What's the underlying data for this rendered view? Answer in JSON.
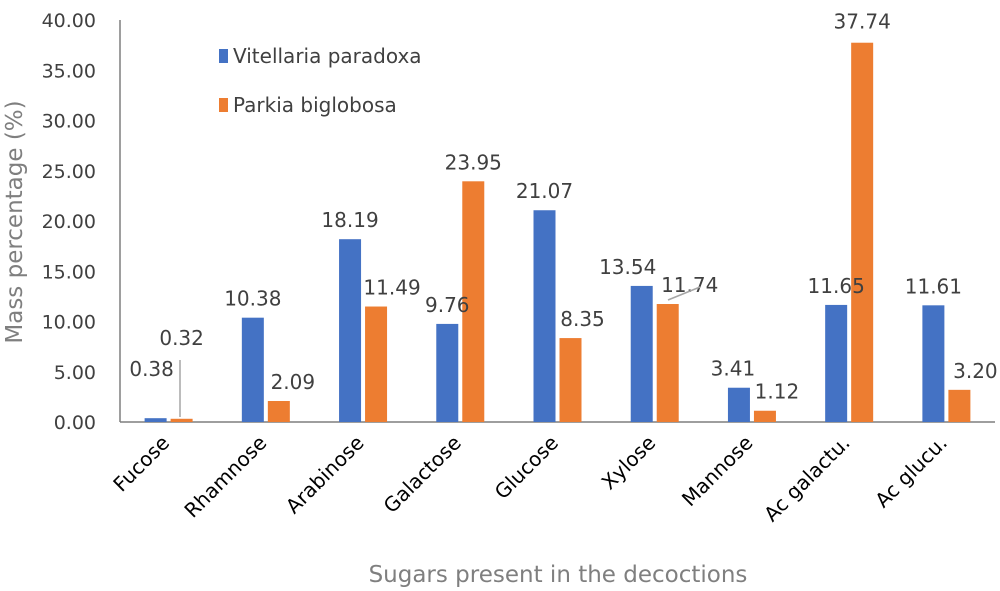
{
  "chart_data": {
    "type": "bar",
    "title": "",
    "xlabel": "Sugars present in the decoctions",
    "ylabel": "Mass percentage (%)",
    "ylim": [
      0,
      40
    ],
    "yticks": [
      "0.00",
      "5.00",
      "10.00",
      "15.00",
      "20.00",
      "25.00",
      "30.00",
      "35.00",
      "40.00"
    ],
    "categories": [
      "Fucose",
      "Rhamnose",
      "Arabinose",
      "Galactose",
      "Glucose",
      "Xylose",
      "Mannose",
      "Ac galactu.",
      "Ac glucu."
    ],
    "series": [
      {
        "name": "Vitellaria paradoxa",
        "color": "#4472c4",
        "values": [
          0.38,
          10.38,
          18.19,
          9.76,
          21.07,
          13.54,
          3.41,
          11.65,
          11.61
        ],
        "labels": [
          "0.38",
          "10.38",
          "18.19",
          "9.76",
          "21.07",
          "13.54",
          "3.41",
          "11.65",
          "11.61"
        ]
      },
      {
        "name": "Parkia biglobosa",
        "color": "#ed7d31",
        "values": [
          0.32,
          2.09,
          11.49,
          23.95,
          8.35,
          11.74,
          1.12,
          37.74,
          3.2
        ],
        "labels": [
          "0.32",
          "2.09",
          "11.49",
          "23.95",
          "8.35",
          "11.74",
          "1.12",
          "37.74",
          "3.20"
        ]
      }
    ],
    "legend_position": "top-left",
    "grid": false
  }
}
